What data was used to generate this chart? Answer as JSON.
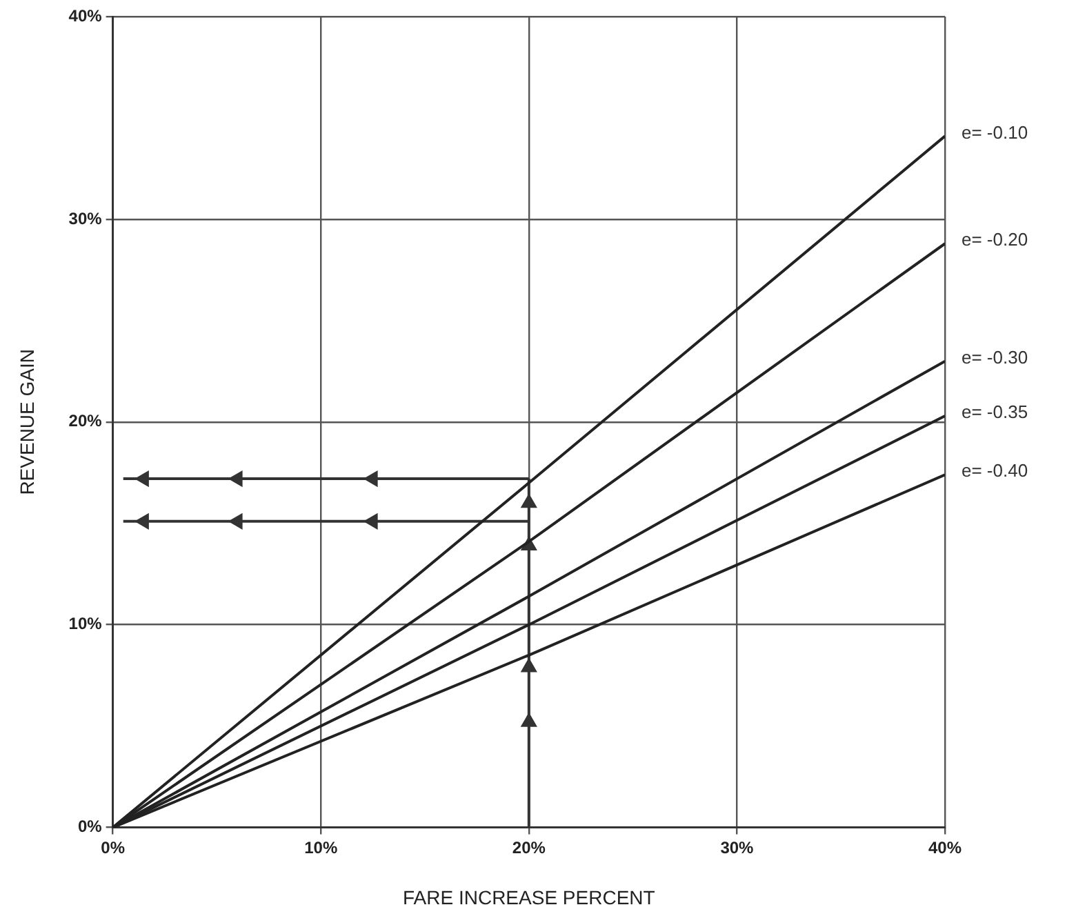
{
  "chart_data": {
    "type": "line",
    "xlabel": "FARE INCREASE PERCENT",
    "ylabel": "REVENUE GAIN",
    "xlim": [
      0,
      40
    ],
    "xticks": [
      {
        "value": 0,
        "label": "0%"
      },
      {
        "value": 10,
        "label": "10%"
      },
      {
        "value": 20,
        "label": "20%"
      },
      {
        "value": 30,
        "label": "30%"
      },
      {
        "value": 40,
        "label": "40%"
      }
    ],
    "ylim": [
      0,
      40
    ],
    "yticks": [
      {
        "value": 0,
        "label": "0%"
      },
      {
        "value": 10,
        "label": "10%"
      },
      {
        "value": 20,
        "label": "20%"
      },
      {
        "value": 30,
        "label": "30%"
      },
      {
        "value": 40,
        "label": "40%"
      }
    ],
    "grid": true,
    "legend": false,
    "marker": "none",
    "series": [
      {
        "name": "e= -0.10",
        "color": "#222222",
        "x": [
          0,
          20,
          40
        ],
        "values": [
          0,
          17,
          34.1
        ]
      },
      {
        "name": "e= -0.20",
        "color": "#222222",
        "x": [
          0,
          20,
          40
        ],
        "values": [
          0,
          14.1,
          28.8
        ]
      },
      {
        "name": "e= -0.30",
        "color": "#222222",
        "x": [
          0,
          20,
          40
        ],
        "values": [
          0,
          11.4,
          23
        ]
      },
      {
        "name": "e= -0.35",
        "color": "#222222",
        "x": [
          0,
          20,
          40
        ],
        "values": [
          0,
          10,
          20.3
        ]
      },
      {
        "name": "e= -0.40",
        "color": "#222222",
        "x": [
          0,
          20,
          40
        ],
        "values": [
          0,
          8.5,
          17.4
        ]
      },
      {
        "color": "#333333",
        "marker": "triangle",
        "x": [
          20,
          12.5,
          6,
          1.5,
          0.5
        ],
        "values": [
          17.2,
          17.2,
          17.2,
          17.2,
          17.2
        ]
      },
      {
        "color": "#333333",
        "marker": "triangle",
        "x": [
          20,
          12.5,
          6,
          1.5,
          0.5
        ],
        "values": [
          15.1,
          15.1,
          15.1,
          15.1,
          15.1
        ]
      },
      {
        "color": "#333333",
        "marker": "triangle",
        "x": [
          20,
          20,
          20,
          20,
          20,
          20
        ],
        "values": [
          0,
          5.2,
          7.9,
          13.9,
          16,
          17.2
        ]
      }
    ]
  }
}
